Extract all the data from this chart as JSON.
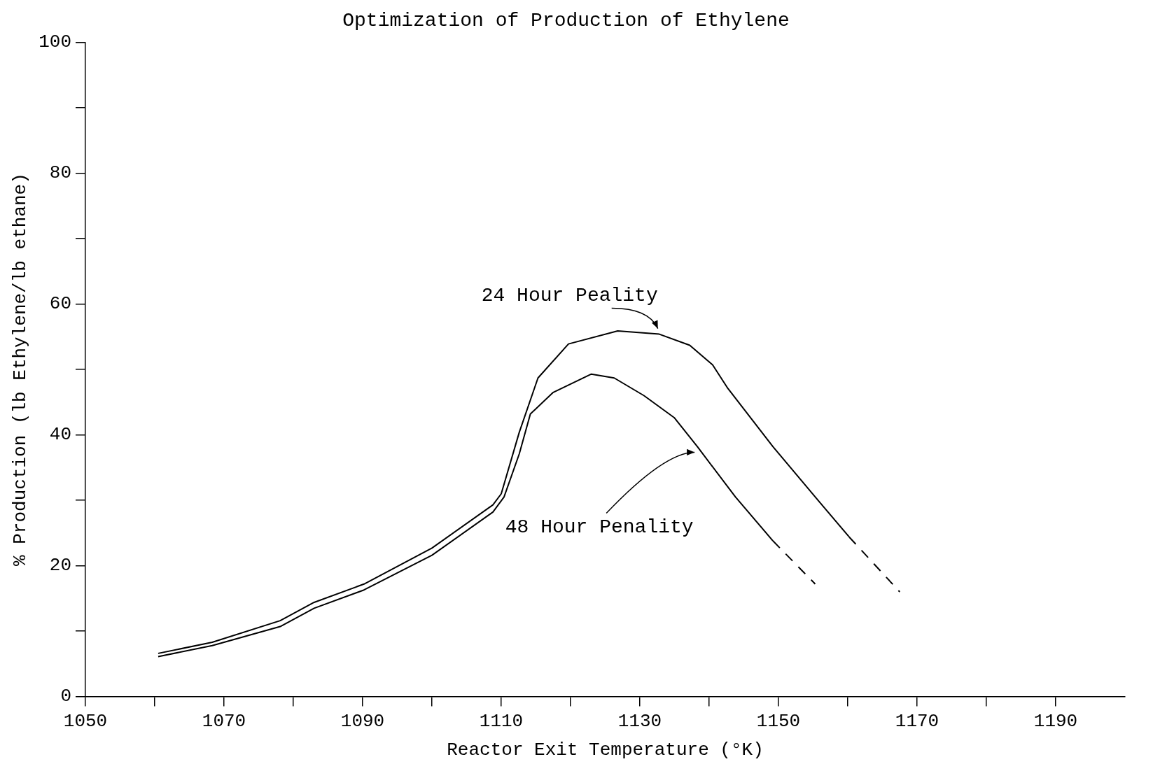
{
  "chart_data": {
    "type": "line",
    "title": "Optimization of Production of Ethylene",
    "xlabel": "Reactor Exit Temperature (°K)",
    "ylabel": "% Production (lb Ethylene/lb ethane)",
    "xlim": [
      1050,
      1200
    ],
    "ylim": [
      0,
      100
    ],
    "xticks": [
      1050,
      {
        "value": 1060,
        "label": null
      },
      1070,
      {
        "value": 1080,
        "label": null
      },
      1090,
      {
        "value": 1100,
        "label": null
      },
      1110,
      {
        "value": 1120,
        "label": null
      },
      1130,
      {
        "value": 1140,
        "label": null
      },
      1150,
      {
        "value": 1160,
        "label": null
      },
      1170,
      {
        "value": 1180,
        "label": null
      },
      1190
    ],
    "yticks": [
      0,
      {
        "value": 10,
        "label": null
      },
      20,
      {
        "value": 30,
        "label": null
      },
      40,
      {
        "value": 50,
        "label": null
      },
      60,
      {
        "value": 70,
        "label": null
      },
      80,
      {
        "value": 90,
        "label": null
      },
      100
    ],
    "grid": false,
    "legend": false,
    "marker": "none",
    "series": [
      {
        "color": "#000000",
        "line_style": "solid",
        "x": [
          1060.5,
          1068.3,
          1078.1,
          1083,
          1090.2,
          1100,
          1108.8,
          1110,
          1112.6,
          1115.3,
          1119.7,
          1126.8,
          1132.8,
          1137.2,
          1140.5,
          1142.7,
          1149.2,
          1155.8,
          1160.2
        ],
        "values": [
          6.6,
          8.3,
          11.6,
          14.4,
          17.2,
          22.7,
          29.3,
          31,
          40.4,
          48.7,
          53.9,
          55.9,
          55.4,
          53.7,
          50.7,
          47.1,
          38.2,
          29.9,
          24.4
        ]
      },
      {
        "color": "#000000",
        "line_style": "dashed",
        "x": [
          1160.2,
          1167.5
        ],
        "values": [
          24.4,
          16
        ]
      },
      {
        "color": "#000000",
        "line_style": "solid",
        "x": [
          1060.5,
          1068.3,
          1078.1,
          1083,
          1090.2,
          1100,
          1108.8,
          1110.4,
          1112.6,
          1114.2,
          1117.5,
          1123,
          1126.3,
          1130.6,
          1135,
          1138.3,
          1143.8,
          1149.2
        ],
        "values": [
          6.1,
          7.8,
          10.7,
          13.5,
          16.3,
          21.6,
          28.2,
          30.5,
          37.1,
          43.2,
          46.5,
          49.3,
          48.7,
          46,
          42.6,
          38.2,
          30.5,
          23.8
        ]
      },
      {
        "color": "#000000",
        "line_style": "dashed",
        "x": [
          1149.2,
          1155.3
        ],
        "values": [
          23.8,
          17.2
        ]
      }
    ],
    "annotations": [
      {
        "text": "24 Hour Peality",
        "x": 1133,
        "y": 55.4
      },
      {
        "text": "48 Hour Penality",
        "x": 1138.3,
        "y": 38.2
      }
    ]
  }
}
